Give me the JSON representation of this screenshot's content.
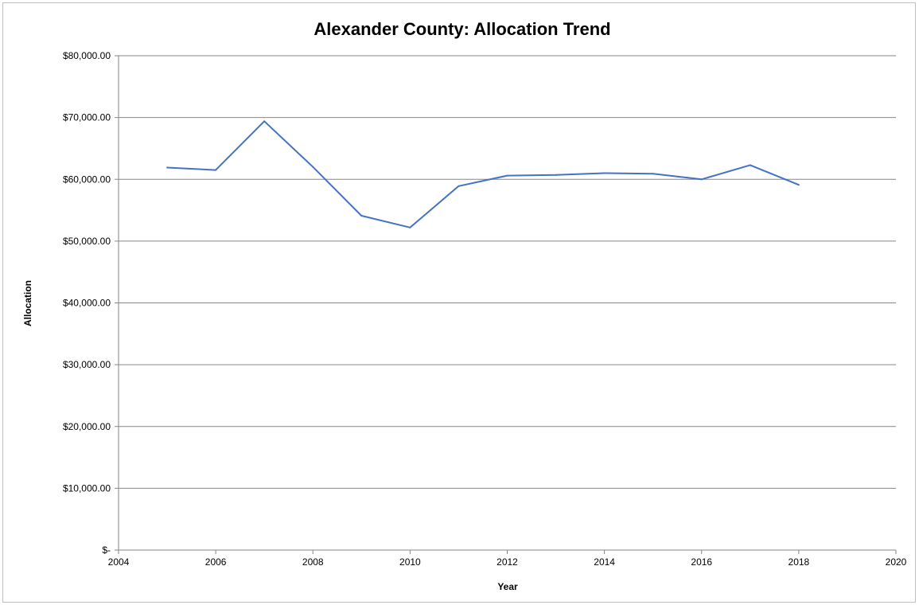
{
  "chart_data": {
    "type": "line",
    "title": "Alexander County: Allocation Trend",
    "xlabel": "Year",
    "ylabel": "Allocation",
    "xlim": [
      2004,
      2020
    ],
    "ylim": [
      0,
      80000
    ],
    "x_ticks": [
      "2004",
      "2006",
      "2008",
      "2010",
      "2012",
      "2014",
      "2016",
      "2018",
      "2020"
    ],
    "y_ticks": [
      "$-",
      "$10,000.00",
      "$20,000.00",
      "$30,000.00",
      "$40,000.00",
      "$50,000.00",
      "$60,000.00",
      "$70,000.00",
      "$80,000.00"
    ],
    "grid": true,
    "legend": "none",
    "series": [
      {
        "color": "#4472c4",
        "x": [
          2005,
          2006,
          2007,
          2008,
          2009,
          2010,
          2011,
          2012,
          2013,
          2014,
          2015,
          2016,
          2017,
          2018
        ],
        "y": [
          61900,
          61500,
          69400,
          62000,
          54100,
          52200,
          58900,
          60600,
          60700,
          61000,
          60900,
          60000,
          62300,
          59100
        ]
      }
    ]
  }
}
